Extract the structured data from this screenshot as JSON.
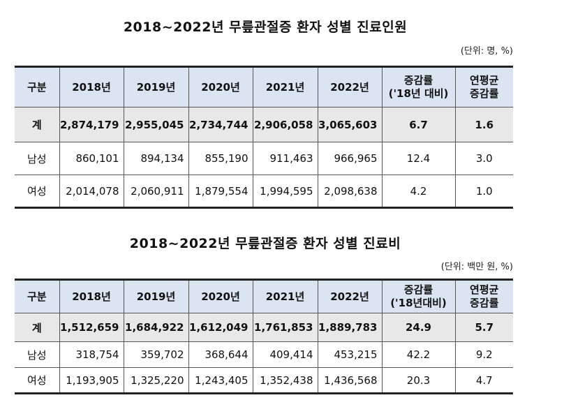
{
  "table1": {
    "title": "2018~2022년 무릎관절증 환자 성별 진료인원",
    "unit": "(단위: 명, %)",
    "headers": [
      "구분",
      "2018년",
      "2019년",
      "2020년",
      "2021년",
      "2022년",
      "증감률",
      "('18년 대비)",
      "연평균",
      "증감률"
    ],
    "rows": [
      {
        "label": "계",
        "values": [
          "2,874,179",
          "2,955,045",
          "2,734,744",
          "2,906,058",
          "3,065,603"
        ],
        "rate": "6.7",
        "avg": "1.6"
      },
      {
        "label": "남성",
        "values": [
          "860,101",
          "894,134",
          "855,190",
          "911,463",
          "966,965"
        ],
        "rate": "12.4",
        "avg": "3.0"
      },
      {
        "label": "여성",
        "values": [
          "2,014,078",
          "2,060,911",
          "1,879,554",
          "1,994,595",
          "2,098,638"
        ],
        "rate": "4.2",
        "avg": "1.0"
      }
    ]
  },
  "table2": {
    "title": "2018~2022년 무릎관절증 환자 성별 진료비",
    "unit": "(단위: 백만 원, %)",
    "headers": [
      "구분",
      "2018년",
      "2019년",
      "2020년",
      "2021년",
      "2022년",
      "증감률",
      "('18년대비)",
      "연평균",
      "증감률"
    ],
    "rows": [
      {
        "label": "계",
        "values": [
          "1,512,659",
          "1,684,922",
          "1,612,049",
          "1,761,853",
          "1,889,783"
        ],
        "rate": "24.9",
        "avg": "5.7"
      },
      {
        "label": "남성",
        "values": [
          "318,754",
          "359,702",
          "368,644",
          "409,414",
          "453,215"
        ],
        "rate": "42.2",
        "avg": "9.2"
      },
      {
        "label": "여성",
        "values": [
          "1,193,905",
          "1,325,220",
          "1,243,405",
          "1,352,438",
          "1,436,568"
        ],
        "rate": "20.3",
        "avg": "4.7"
      }
    ]
  }
}
